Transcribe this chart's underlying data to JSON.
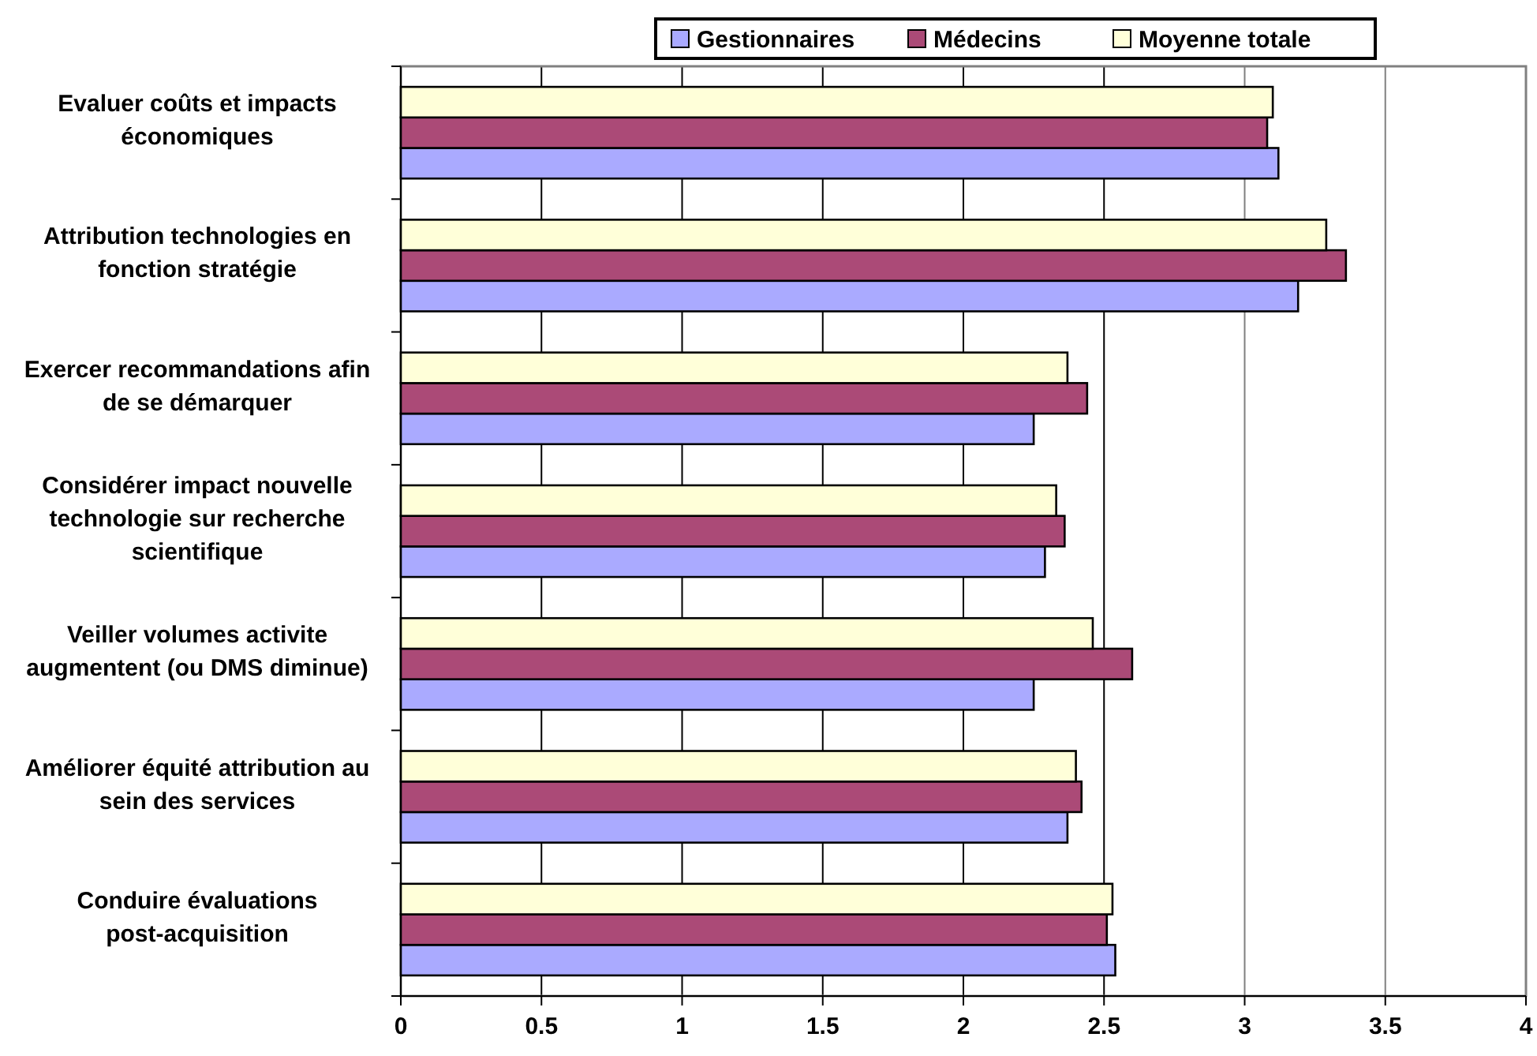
{
  "chart_data": {
    "type": "bar",
    "orientation": "horizontal",
    "categories": [
      "Evaluer coûts et impacts économiques",
      "Attribution technologies en fonction stratégie",
      "Exercer recommandations afin de se démarquer",
      "Considérer impact nouvelle technologie sur recherche scientifique",
      "Veiller volumes activite augmentent (ou DMS diminue)",
      "Améliorer équité attribution au sein des services",
      "Conduire évaluations post-acquisition"
    ],
    "series": [
      {
        "name": "Gestionnaires",
        "color": "#aaaaff",
        "values": [
          3.12,
          3.19,
          2.25,
          2.29,
          2.25,
          2.37,
          2.54
        ]
      },
      {
        "name": "Médecins",
        "color": "#ab4a77",
        "values": [
          3.08,
          3.36,
          2.44,
          2.36,
          2.6,
          2.42,
          2.51
        ]
      },
      {
        "name": "Moyenne totale",
        "color": "#ffffd9",
        "values": [
          3.1,
          3.29,
          2.37,
          2.33,
          2.46,
          2.4,
          2.53
        ]
      }
    ],
    "xlim": [
      0,
      4
    ],
    "xticks": [
      0,
      0.5,
      1,
      1.5,
      2,
      2.5,
      3,
      3.5,
      4
    ],
    "grid": "x",
    "legend": "top"
  }
}
